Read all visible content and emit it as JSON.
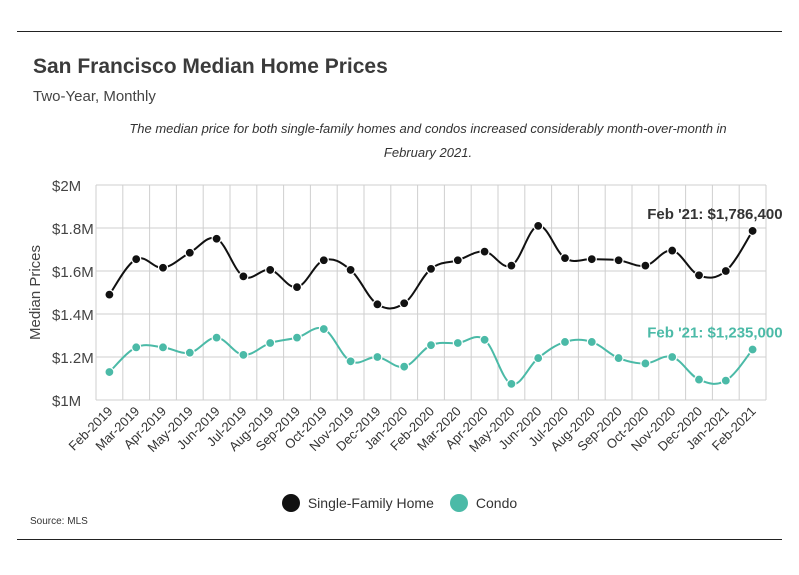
{
  "page": {
    "title": "San Francisco Median Home Prices",
    "subtitle": "Two-Year, Monthly",
    "note": "The median price for both single-family homes and condos increased considerably month-over-month in February 2021.",
    "source": "Source:  MLS"
  },
  "chart_data": {
    "type": "line",
    "title": "San Francisco Median Home Prices",
    "subtitle": "Two-Year, Monthly",
    "ylabel": "Median Prices",
    "xlabel": "",
    "ylim": [
      1000000,
      2000000
    ],
    "yticks": [
      {
        "value": 1000000,
        "label": "$1M"
      },
      {
        "value": 1200000,
        "label": "$1.2M"
      },
      {
        "value": 1400000,
        "label": "$1.4M"
      },
      {
        "value": 1600000,
        "label": "$1.6M"
      },
      {
        "value": 1800000,
        "label": "$1.8M"
      },
      {
        "value": 2000000,
        "label": "$2M"
      }
    ],
    "grid": true,
    "legend_position": "bottom-center",
    "categories": [
      "Feb-2019",
      "Mar-2019",
      "Apr-2019",
      "May-2019",
      "Jun-2019",
      "Jul-2019",
      "Aug-2019",
      "Sep-2019",
      "Oct-2019",
      "Nov-2019",
      "Dec-2019",
      "Jan-2020",
      "Feb-2020",
      "Mar-2020",
      "Apr-2020",
      "May-2020",
      "Jun-2020",
      "Jul-2020",
      "Aug-2020",
      "Sep-2020",
      "Oct-2020",
      "Nov-2020",
      "Dec-2020",
      "Jan-2021",
      "Feb-2021"
    ],
    "series": [
      {
        "name": "Single-Family Home",
        "color": "#111111",
        "values": [
          1490000,
          1655000,
          1615000,
          1685000,
          1750000,
          1575000,
          1605000,
          1525000,
          1650000,
          1605000,
          1445000,
          1450000,
          1610000,
          1650000,
          1690000,
          1625000,
          1810000,
          1660000,
          1655000,
          1650000,
          1625000,
          1695000,
          1580000,
          1600000,
          1786400
        ],
        "annotation": "Feb '21: $1,786,400"
      },
      {
        "name": "Condo",
        "color": "#4bbaa7",
        "values": [
          1130000,
          1245000,
          1245000,
          1220000,
          1290000,
          1210000,
          1265000,
          1290000,
          1330000,
          1180000,
          1200000,
          1155000,
          1255000,
          1265000,
          1280000,
          1075000,
          1195000,
          1270000,
          1270000,
          1195000,
          1170000,
          1200000,
          1095000,
          1090000,
          1235000
        ],
        "annotation": "Feb '21: $1,235,000"
      }
    ]
  }
}
